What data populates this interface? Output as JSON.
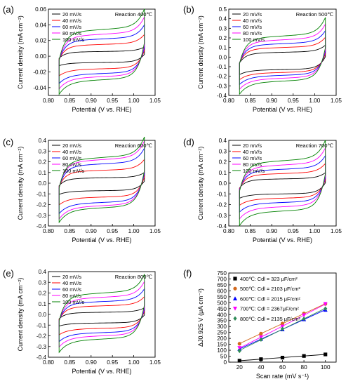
{
  "figure": {
    "panels": [
      {
        "letter": "(a)",
        "annotation": "Reaction 400℃"
      },
      {
        "letter": "(b)",
        "annotation": "Reaction 500℃"
      },
      {
        "letter": "(c)",
        "annotation": "Reaction 600℃"
      },
      {
        "letter": "(d)",
        "annotation": "Reaction 700℃"
      },
      {
        "letter": "(e)",
        "annotation": "Reaction 800℃"
      },
      {
        "letter": "(f)",
        "annotation": ""
      }
    ]
  },
  "chart_data": [
    {
      "type": "line",
      "annotation": "Reaction 400℃",
      "xlabel": "Potential (V vs. RHE)",
      "ylabel": "Current density (mA cm⁻²)",
      "xlim": [
        0.8,
        1.05
      ],
      "ylim": [
        -0.05,
        0.06
      ],
      "xticks": [
        "0.80",
        "0.85",
        "0.90",
        "0.95",
        "1.00",
        "1.05"
      ],
      "yticks": [
        "-0.04",
        "-0.02",
        "0.00",
        "0.02",
        "0.04",
        "0.06"
      ],
      "legend": "top-left",
      "series": [
        {
          "name": "20 mV/s",
          "color": "#000000",
          "upper_mid": 0.006,
          "lower_mid": -0.008
        },
        {
          "name": "40 mV/s",
          "color": "#ff0000",
          "upper_mid": 0.015,
          "lower_mid": -0.016
        },
        {
          "name": "60 mV/s",
          "color": "#0000ff",
          "upper_mid": 0.022,
          "lower_mid": -0.022
        },
        {
          "name": "80 mV/s",
          "color": "#ff00ff",
          "upper_mid": 0.028,
          "lower_mid": -0.026
        },
        {
          "name": "100 mV/s",
          "color": "#008000",
          "upper_mid": 0.034,
          "lower_mid": -0.03
        }
      ]
    },
    {
      "type": "line",
      "annotation": "Reaction 500℃",
      "xlabel": "Potential (V vs. RHE)",
      "ylabel": "Current density (mA cm⁻²)",
      "xlim": [
        0.8,
        1.05
      ],
      "ylim": [
        -0.4,
        0.5
      ],
      "xticks": [
        "0.80",
        "0.85",
        "0.90",
        "0.95",
        "1.00",
        "1.05"
      ],
      "yticks": [
        "-0.4",
        "-0.3",
        "-0.2",
        "-0.1",
        "0.0",
        "0.1",
        "0.2",
        "0.3",
        "0.4",
        "0.5"
      ],
      "legend": "top-left",
      "series": [
        {
          "name": "20 mV/s",
          "color": "#000000",
          "upper_mid": 0.05,
          "lower_mid": -0.13
        },
        {
          "name": "40 mV/s",
          "color": "#ff0000",
          "upper_mid": 0.1,
          "lower_mid": -0.16
        },
        {
          "name": "60 mV/s",
          "color": "#0000ff",
          "upper_mid": 0.14,
          "lower_mid": -0.19
        },
        {
          "name": "80 mV/s",
          "color": "#ff00ff",
          "upper_mid": 0.18,
          "lower_mid": -0.22
        },
        {
          "name": "100 mV/s",
          "color": "#008000",
          "upper_mid": 0.22,
          "lower_mid": -0.25
        }
      ]
    },
    {
      "type": "line",
      "annotation": "Reaction 600℃",
      "xlabel": "Potential (V vs. RHE)",
      "ylabel": "Current density (mA cm⁻²)",
      "xlim": [
        0.8,
        1.05
      ],
      "ylim": [
        -0.4,
        0.4
      ],
      "xticks": [
        "0.80",
        "0.85",
        "0.90",
        "0.95",
        "1.00",
        "1.05"
      ],
      "yticks": [
        "-0.4",
        "-0.3",
        "-0.2",
        "-0.1",
        "0.0",
        "0.1",
        "0.2",
        "0.3",
        "0.4"
      ],
      "legend": "top-left",
      "series": [
        {
          "name": "20 mV/s",
          "color": "#000000",
          "upper_mid": 0.05,
          "lower_mid": -0.07
        },
        {
          "name": "40 mV/s",
          "color": "#ff0000",
          "upper_mid": 0.12,
          "lower_mid": -0.13
        },
        {
          "name": "60 mV/s",
          "color": "#0000ff",
          "upper_mid": 0.18,
          "lower_mid": -0.18
        },
        {
          "name": "80 mV/s",
          "color": "#ff00ff",
          "upper_mid": 0.22,
          "lower_mid": -0.21
        },
        {
          "name": "100 mV/s",
          "color": "#008000",
          "upper_mid": 0.24,
          "lower_mid": -0.23
        }
      ]
    },
    {
      "type": "line",
      "annotation": "Reaction 700℃",
      "xlabel": "Potential (V vs. RHE)",
      "ylabel": "Current density (mA cm⁻²)",
      "xlim": [
        0.8,
        1.05
      ],
      "ylim": [
        -0.4,
        0.4
      ],
      "xticks": [
        "0.80",
        "0.85",
        "0.90",
        "0.95",
        "1.00",
        "1.05"
      ],
      "yticks": [
        "-0.4",
        "-0.3",
        "-0.2",
        "-0.1",
        "0.0",
        "0.1",
        "0.2",
        "0.3",
        "0.4"
      ],
      "legend": "top-left",
      "series": [
        {
          "name": "20 mV/s",
          "color": "#000000",
          "upper_mid": 0.04,
          "lower_mid": -0.1
        },
        {
          "name": "40 mV/s",
          "color": "#ff0000",
          "upper_mid": 0.09,
          "lower_mid": -0.14
        },
        {
          "name": "60 mV/s",
          "color": "#0000ff",
          "upper_mid": 0.13,
          "lower_mid": -0.18
        },
        {
          "name": "80 mV/s",
          "color": "#ff00ff",
          "upper_mid": 0.17,
          "lower_mid": -0.22
        },
        {
          "name": "100 mV/s",
          "color": "#008000",
          "upper_mid": 0.21,
          "lower_mid": -0.26
        }
      ]
    },
    {
      "type": "line",
      "annotation": "Reaction 800℃",
      "xlabel": "Potential (V vs. RHE)",
      "ylabel": "Current density (mA cm⁻²)",
      "xlim": [
        0.8,
        1.05
      ],
      "ylim": [
        -0.4,
        0.4
      ],
      "xticks": [
        "0.80",
        "0.85",
        "0.90",
        "0.95",
        "1.00",
        "1.05"
      ],
      "yticks": [
        "-0.4",
        "-0.3",
        "-0.2",
        "-0.1",
        "0.0",
        "0.1",
        "0.2",
        "0.3",
        "0.4"
      ],
      "legend": "top-left",
      "series": [
        {
          "name": "20 mV/s",
          "color": "#000000",
          "upper_mid": 0.02,
          "lower_mid": -0.08
        },
        {
          "name": "40 mV/s",
          "color": "#ff0000",
          "upper_mid": 0.08,
          "lower_mid": -0.13
        },
        {
          "name": "60 mV/s",
          "color": "#0000ff",
          "upper_mid": 0.12,
          "lower_mid": -0.17
        },
        {
          "name": "80 mV/s",
          "color": "#ff00ff",
          "upper_mid": 0.16,
          "lower_mid": -0.2
        },
        {
          "name": "100 mV/s",
          "color": "#008000",
          "upper_mid": 0.2,
          "lower_mid": -0.23
        }
      ]
    },
    {
      "type": "scatter",
      "xlabel": "Scan rate (mV s⁻¹)",
      "ylabel": "ΔJ0.925 V (μA cm⁻²)",
      "xlim": [
        10,
        110
      ],
      "ylim": [
        0,
        750
      ],
      "xticks": [
        "20",
        "40",
        "60",
        "80",
        "100"
      ],
      "yticks": [
        "0",
        "50",
        "100",
        "150",
        "200",
        "250",
        "300",
        "350",
        "400",
        "450",
        "500",
        "550",
        "600",
        "650",
        "700",
        "750"
      ],
      "legend": "top-left",
      "x": [
        20,
        40,
        60,
        80,
        100
      ],
      "series": [
        {
          "name": "400℃: Cdl = 323 μF/cm²",
          "color": "#000000",
          "marker": "square",
          "values": [
            12,
            25,
            38,
            52,
            65
          ]
        },
        {
          "name": "500℃: Cdl = 2103 μF/cm²",
          "color": "#d2691e",
          "marker": "circle",
          "values": [
            155,
            240,
            325,
            410,
            490
          ]
        },
        {
          "name": "600℃: Cdl = 2015 μF/cm²",
          "color": "#0000ff",
          "marker": "triangle-up",
          "values": [
            110,
            195,
            275,
            360,
            440
          ]
        },
        {
          "name": "700℃: Cdl = 2367μF/cm²",
          "color": "#ff00ff",
          "marker": "triangle-down",
          "values": [
            120,
            210,
            300,
            395,
            490
          ]
        },
        {
          "name": "800℃: Cdl = 2135 μF/cm²",
          "color": "#2e8b57",
          "marker": "diamond",
          "values": [
            95,
            190,
            280,
            365,
            450
          ]
        }
      ]
    }
  ]
}
